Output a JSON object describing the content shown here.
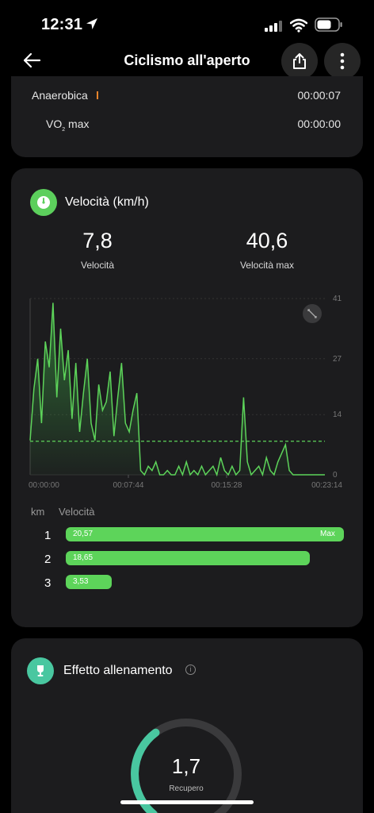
{
  "status_bar": {
    "time": "12:31"
  },
  "nav": {
    "title": "Ciclismo all'aperto"
  },
  "zones": [
    {
      "label": "Anaerobica",
      "value": "00:00:07",
      "color": "#e8842c"
    },
    {
      "label_main": "VO",
      "label_sub": "2",
      "label_tail": " max",
      "value": "00:00:00"
    }
  ],
  "speed": {
    "title": "Velocità (km/h)",
    "avg_value": "7,8",
    "avg_label": "Velocità",
    "max_value": "40,6",
    "max_label": "Velocità max",
    "accent": "#5ccf5c"
  },
  "chart_data": {
    "type": "line",
    "title": "",
    "xlabel": "",
    "ylabel": "",
    "ylim": [
      0,
      41
    ],
    "yticks": [
      "41",
      "27",
      "14",
      "0"
    ],
    "xticks": [
      "00:00:00",
      "00:07:44",
      "00:15:28",
      "00:23:14"
    ],
    "average_line": 7.8,
    "x_minutes": [
      0,
      0.3,
      0.6,
      0.9,
      1.2,
      1.5,
      1.8,
      2.1,
      2.4,
      2.7,
      3.0,
      3.3,
      3.6,
      3.9,
      4.2,
      4.5,
      4.8,
      5.1,
      5.4,
      5.7,
      6.0,
      6.3,
      6.6,
      6.9,
      7.2,
      7.5,
      7.8,
      8.1,
      8.4,
      8.7,
      9.0,
      9.3,
      9.6,
      9.9,
      10.2,
      10.5,
      10.8,
      11.1,
      11.4,
      11.7,
      12.0,
      12.3,
      12.6,
      12.9,
      13.2,
      13.5,
      13.8,
      14.1,
      14.4,
      14.7,
      15.0,
      15.3,
      15.6,
      15.9,
      16.2,
      16.5,
      16.8,
      17.1,
      17.4,
      17.7,
      18.0,
      18.3,
      18.6,
      18.9,
      19.2,
      19.5,
      19.8,
      20.1,
      20.4,
      20.7,
      21.0,
      21.3,
      21.6,
      21.9,
      22.2,
      22.5,
      22.8,
      23.2
    ],
    "y_kmh": [
      8,
      20,
      27,
      12,
      31,
      25,
      40,
      18,
      34,
      22,
      29,
      13,
      26,
      10,
      19,
      27,
      12,
      8,
      21,
      15,
      17,
      24,
      9,
      18,
      26,
      12,
      10,
      15,
      19,
      1,
      0,
      2,
      1,
      3,
      0,
      0,
      1,
      0,
      0,
      2,
      0,
      3,
      0,
      1,
      0,
      2,
      0,
      1,
      2,
      0,
      4,
      1,
      0,
      2,
      0,
      1,
      18,
      3,
      0,
      1,
      2,
      0,
      4,
      1,
      0,
      3,
      5,
      7,
      1,
      0,
      0,
      0,
      0,
      0,
      0,
      0,
      0,
      0
    ]
  },
  "km_splits": {
    "head_km": "km",
    "head_speed": "Velocità",
    "rows": [
      {
        "km": "1",
        "value": "20,57",
        "speed": 20.57,
        "max_label": "Max"
      },
      {
        "km": "2",
        "value": "18,65",
        "speed": 18.65
      },
      {
        "km": "3",
        "value": "3,53",
        "speed": 3.53
      }
    ]
  },
  "training": {
    "title": "Effetto allenamento",
    "value": "1,7",
    "label": "Recupero",
    "accent": "#49c7a0",
    "gauge_fraction": 0.34
  }
}
